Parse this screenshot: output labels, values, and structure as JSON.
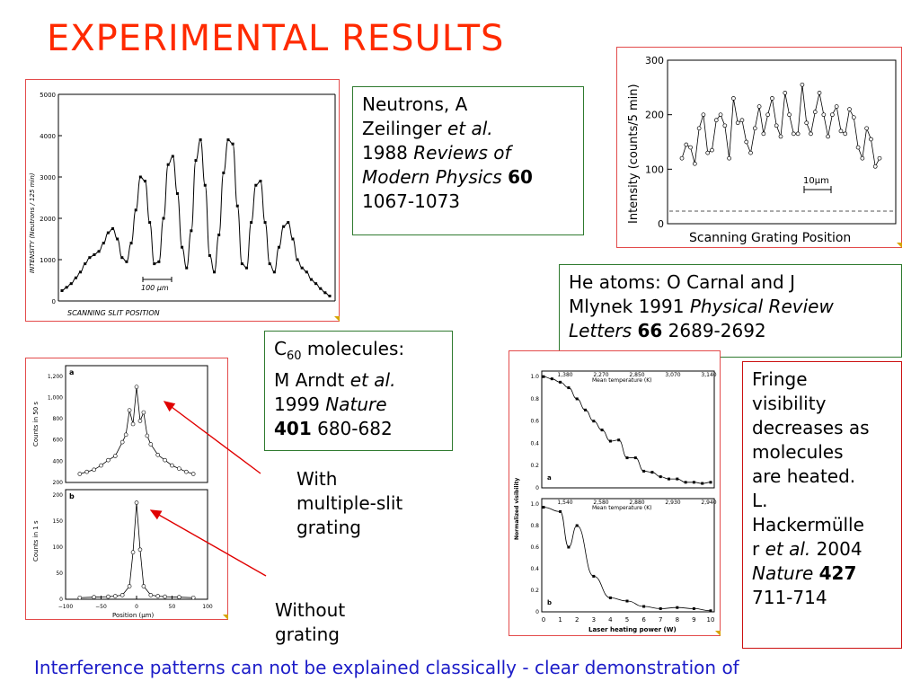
{
  "slide": {
    "title": "EXPERIMENTAL RESULTS",
    "footer": "Interference patterns can not be explained classically - clear demonstration of"
  },
  "neutron_box": {
    "line1": "Neutrons, A",
    "line2_a": "Zeilinger ",
    "line2_b": "et al.",
    "line3_a": "1988 ",
    "line3_b": "Reviews of",
    "line4_a": "Modern Physics ",
    "line4_b": "60",
    "line5": "1067-1073"
  },
  "he_box": {
    "line1_a": "He atoms: ",
    "line1_b": "O Carnal and J",
    "line2_a": "Mlynek 1991 ",
    "line2_b": "Physical Review",
    "line3_a": "Letters ",
    "line3_b": "66",
    "line3_c": " 2689-2692"
  },
  "c60_box": {
    "c": "C",
    "sub": "60",
    "rest": " molecules:",
    "line2_a": "M Arndt ",
    "line2_b": "et al.",
    "line3_a": "1999 ",
    "line3_b": "Nature",
    "line4_a": "401",
    "line4_b": "  680-682"
  },
  "label_with": [
    "With",
    "multiple-slit",
    "grating"
  ],
  "label_without": [
    "Without",
    "grating"
  ],
  "fringe_box": {
    "lines": [
      "Fringe",
      "visibility",
      "decreases as",
      "molecules",
      "are heated.",
      "L.",
      "Hackermülle"
    ],
    "line8_a": "r ",
    "line8_b": "et al.",
    "line8_c": " 2004",
    "line9_a": "Nature ",
    "line9_b": "427",
    "line10": "711-714"
  },
  "fig_neutron": {
    "ylabel": "INTENSITY  (Neutrons / 125 min)",
    "xlabel": "SCANNING SLIT POSITION",
    "scale_label": "100 µm",
    "yticks": [
      "0",
      "1000",
      "2000",
      "3000",
      "4000",
      "5000"
    ]
  },
  "fig_he": {
    "ylabel": "Intensity (counts/5 min)",
    "xlabel": "Scanning Grating Position",
    "scale_label": "10µm",
    "yticks": [
      "0",
      "100",
      "200",
      "300"
    ]
  },
  "fig_c60": {
    "panel_a": "a",
    "panel_b": "b",
    "ylabel_a": "Counts in 50 s",
    "ylabel_b": "Counts in 1 s",
    "xlabel": "Position (µm)",
    "yticks_a": [
      "200",
      "400",
      "600",
      "800",
      "1,000",
      "1,200"
    ],
    "yticks_b": [
      "0",
      "50",
      "100",
      "150",
      "200"
    ],
    "xticks": [
      "−100",
      "−50",
      "0",
      "50",
      "100"
    ]
  },
  "fig_vis": {
    "ylabel": "Normalized visibility",
    "xlabel": "Laser heating power (W)",
    "toplabel_a": "Mean temperature (K)",
    "toplabel_b": "Mean temperature (K)",
    "temps_a": [
      "1,380",
      "2,270",
      "2,850",
      "3,070",
      "3,140"
    ],
    "temps_b": [
      "1,540",
      "2,580",
      "2,880",
      "2,930",
      "2,940"
    ],
    "yticks": [
      "0",
      "0.2",
      "0.4",
      "0.6",
      "0.8",
      "1.0"
    ],
    "xticks": [
      "0",
      "1",
      "2",
      "3",
      "4",
      "5",
      "6",
      "7",
      "8",
      "9",
      "10"
    ],
    "panel_a": "a",
    "panel_b": "b"
  },
  "chart_data": [
    {
      "type": "line",
      "ylabel": "INTENSITY (Neutrons / 125 min)",
      "xlabel": "SCANNING SLIT POSITION",
      "ylim": [
        0,
        5000
      ],
      "series": [
        {
          "values": [
            250,
            330,
            420,
            560,
            700,
            900,
            1050,
            1120,
            1200,
            1400,
            1650,
            1750,
            1500,
            1050,
            950,
            1400,
            2200,
            3000,
            2900,
            1900,
            900,
            950,
            2000,
            3300,
            3500,
            2600,
            1300,
            800,
            1700,
            3400,
            3900,
            2800,
            1100,
            700,
            1600,
            3100,
            3900,
            3800,
            2300,
            900,
            800,
            1900,
            2800,
            2900,
            1900,
            900,
            700,
            1300,
            1800,
            1900,
            1500,
            1000,
            800,
            700,
            520,
            420,
            300,
            200,
            120
          ]
        }
      ]
    },
    {
      "type": "line",
      "ylabel": "Intensity (counts/5 min)",
      "xlabel": "Scanning Grating Position",
      "ylim": [
        0,
        300
      ],
      "series": [
        {
          "values": [
            120,
            145,
            140,
            110,
            175,
            200,
            130,
            135,
            190,
            200,
            180,
            120,
            230,
            185,
            190,
            150,
            130,
            175,
            215,
            165,
            200,
            230,
            180,
            160,
            240,
            200,
            165,
            165,
            255,
            185,
            165,
            205,
            240,
            200,
            160,
            200,
            215,
            170,
            165,
            210,
            195,
            140,
            120,
            175,
            155,
            105,
            120
          ]
        }
      ]
    },
    {
      "type": "scatter",
      "title": "a",
      "ylabel": "Counts in 50 s",
      "xlabel": "Position (µm)",
      "ylim": [
        200,
        1300
      ],
      "series": [
        {
          "x": [
            -80,
            -70,
            -60,
            -50,
            -40,
            -30,
            -20,
            -15,
            -10,
            -5,
            0,
            5,
            10,
            15,
            20,
            30,
            40,
            50,
            60,
            70,
            80
          ],
          "values": [
            280,
            300,
            320,
            360,
            410,
            450,
            580,
            650,
            880,
            750,
            1100,
            780,
            860,
            640,
            560,
            460,
            410,
            360,
            330,
            300,
            280
          ]
        }
      ]
    },
    {
      "type": "scatter",
      "title": "b",
      "ylabel": "Counts in 1 s",
      "xlabel": "Position (µm)",
      "ylim": [
        0,
        210
      ],
      "series": [
        {
          "x": [
            -80,
            -60,
            -40,
            -30,
            -20,
            -10,
            -5,
            0,
            5,
            10,
            20,
            30,
            40,
            60,
            80
          ],
          "values": [
            3,
            4,
            5,
            6,
            8,
            25,
            90,
            185,
            95,
            25,
            8,
            6,
            5,
            4,
            3
          ]
        }
      ]
    },
    {
      "type": "scatter",
      "title": "a",
      "ylabel": "Normalized visibility",
      "xlabel": "Laser heating power (W)",
      "ylim": [
        0,
        1.05
      ],
      "series": [
        {
          "x": [
            0,
            0.5,
            1,
            1.5,
            2,
            2.5,
            3,
            3.5,
            4,
            4.5,
            5,
            5.5,
            6,
            6.5,
            7,
            7.5,
            8,
            8.5,
            9,
            9.5,
            10
          ],
          "values": [
            1.0,
            0.98,
            0.95,
            0.9,
            0.8,
            0.7,
            0.6,
            0.52,
            0.42,
            0.43,
            0.27,
            0.27,
            0.15,
            0.14,
            0.1,
            0.08,
            0.08,
            0.05,
            0.05,
            0.04,
            0.05
          ]
        }
      ]
    },
    {
      "type": "scatter",
      "title": "b",
      "ylabel": "Normalized visibility",
      "xlabel": "Laser heating power (W)",
      "ylim": [
        0,
        1.05
      ],
      "series": [
        {
          "x": [
            0,
            1,
            1.5,
            2,
            3,
            4,
            5,
            6,
            7,
            8,
            9,
            10
          ],
          "values": [
            0.97,
            0.93,
            0.6,
            0.8,
            0.33,
            0.13,
            0.1,
            0.05,
            0.03,
            0.04,
            0.03,
            0.01
          ]
        }
      ]
    }
  ]
}
